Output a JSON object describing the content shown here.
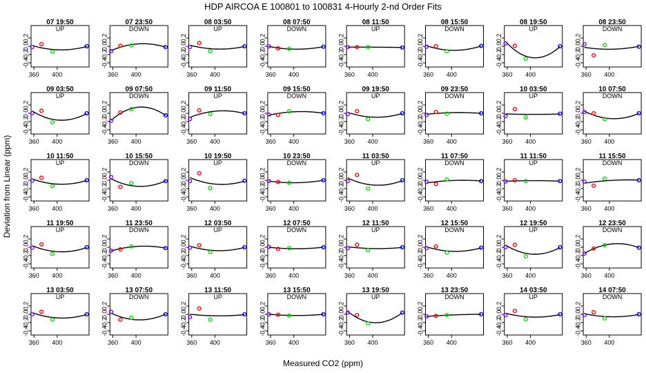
{
  "chart_data": {
    "type": "scatter",
    "title": "HDP    AIRCOA E    100801 to 100831    4-Hourly 2-nd Order Fits",
    "xlabel": "Measured CO2 (ppm)",
    "ylabel": "Deviation from Linear (ppm)",
    "xlim": [
      355,
      455
    ],
    "ylim": [
      -0.5,
      0.5
    ],
    "xticks": [
      360,
      400
    ],
    "xtick_labels": [
      "360",
      "400"
    ],
    "yticks": [
      0.2,
      0.0,
      -0.2,
      -0.4
    ],
    "ytick_labels": [
      "0.2",
      "0.0",
      "-0.2",
      "-0.4"
    ],
    "grid": false,
    "point_x": [
      357,
      373,
      392,
      451
    ],
    "point_colors": [
      "#8000ff",
      "#ff0000",
      "#00dd00",
      "#0000ff"
    ],
    "curve_color": "#000000",
    "panels": [
      {
        "title": "07 19:50",
        "dir": "UP",
        "y": [
          -0.02,
          0.05,
          -0.13,
          0.0
        ]
      },
      {
        "title": "07 23:50",
        "dir": "DOWN",
        "y": [
          -0.12,
          0.01,
          0.02,
          -0.02
        ]
      },
      {
        "title": "08 03:50",
        "dir": "UP",
        "y": [
          -0.02,
          0.08,
          -0.12,
          0.0
        ]
      },
      {
        "title": "08 07:50",
        "dir": "DOWN",
        "y": [
          0.0,
          -0.05,
          -0.06,
          -0.01
        ]
      },
      {
        "title": "08 11:50",
        "dir": "UP",
        "y": [
          -0.02,
          -0.02,
          -0.02,
          -0.03
        ]
      },
      {
        "title": "08 15:50",
        "dir": "DOWN",
        "y": [
          -0.01,
          0.0,
          -0.12,
          0.01
        ]
      },
      {
        "title": "08 19:50",
        "dir": "UP",
        "y": [
          0.07,
          0.01,
          -0.3,
          0.0
        ]
      },
      {
        "title": "08 23:50",
        "dir": "DOWN",
        "y": [
          0.05,
          -0.22,
          0.03,
          -0.01
        ]
      },
      {
        "title": "09 03:50",
        "dir": "UP",
        "y": [
          0.0,
          0.06,
          -0.22,
          0.0
        ]
      },
      {
        "title": "09 07:50",
        "dir": "DOWN",
        "y": [
          -0.18,
          0.02,
          0.1,
          -0.05
        ]
      },
      {
        "title": "09 11:50",
        "dir": "UP",
        "y": [
          -0.14,
          0.07,
          -0.02,
          0.0
        ]
      },
      {
        "title": "09 15:50",
        "dir": "DOWN",
        "y": [
          -0.03,
          -0.04,
          0.05,
          0.0
        ]
      },
      {
        "title": "09 19:50",
        "dir": "UP",
        "y": [
          -0.02,
          0.05,
          -0.14,
          0.0
        ]
      },
      {
        "title": "09 23:50",
        "dir": "DOWN",
        "y": [
          -0.04,
          0.03,
          -0.01,
          0.0
        ]
      },
      {
        "title": "10 03:50",
        "dir": "UP",
        "y": [
          -0.07,
          0.1,
          -0.1,
          -0.01
        ]
      },
      {
        "title": "10 07:50",
        "dir": "DOWN",
        "y": [
          0.03,
          0.0,
          -0.14,
          0.0
        ]
      },
      {
        "title": "10 11:50",
        "dir": "UP",
        "y": [
          -0.01,
          0.06,
          -0.14,
          0.0
        ]
      },
      {
        "title": "10 15:50",
        "dir": "DOWN",
        "y": [
          0.08,
          -0.16,
          -0.07,
          -0.02
        ]
      },
      {
        "title": "10 19:50",
        "dir": "UP",
        "y": [
          -0.02,
          0.17,
          -0.19,
          -0.01
        ]
      },
      {
        "title": "10 23:50",
        "dir": "DOWN",
        "y": [
          -0.02,
          -0.04,
          -0.06,
          0.0
        ]
      },
      {
        "title": "11 03:50",
        "dir": "UP",
        "y": [
          -0.02,
          0.13,
          -0.2,
          0.0
        ]
      },
      {
        "title": "11 07:50",
        "dir": "DOWN",
        "y": [
          -0.04,
          -0.09,
          0.02,
          -0.02
        ]
      },
      {
        "title": "11 11:50",
        "dir": "UP",
        "y": [
          -0.03,
          0.0,
          -0.02,
          -0.02
        ]
      },
      {
        "title": "11 15:50",
        "dir": "DOWN",
        "y": [
          -0.03,
          -0.13,
          0.04,
          0.0
        ]
      },
      {
        "title": "11 19:50",
        "dir": "UP",
        "y": [
          -0.01,
          0.07,
          -0.16,
          0.0
        ]
      },
      {
        "title": "11 23:50",
        "dir": "DOWN",
        "y": [
          -0.08,
          -0.05,
          0.02,
          -0.02
        ]
      },
      {
        "title": "12 03:50",
        "dir": "UP",
        "y": [
          -0.01,
          0.05,
          -0.12,
          0.0
        ]
      },
      {
        "title": "12 07:50",
        "dir": "DOWN",
        "y": [
          0.01,
          -0.04,
          -0.02,
          0.0
        ]
      },
      {
        "title": "12 11:50",
        "dir": "UP",
        "y": [
          -0.02,
          0.06,
          -0.07,
          0.0
        ]
      },
      {
        "title": "12 15:50",
        "dir": "DOWN",
        "y": [
          -0.02,
          0.02,
          -0.13,
          -0.01
        ]
      },
      {
        "title": "12 19:50",
        "dir": "UP",
        "y": [
          0.0,
          0.06,
          -0.22,
          0.0
        ]
      },
      {
        "title": "12 23:50",
        "dir": "DOWN",
        "y": [
          -0.15,
          -0.03,
          0.05,
          -0.01
        ]
      },
      {
        "title": "13 03:50",
        "dir": "UP",
        "y": [
          0.0,
          0.06,
          -0.13,
          0.0
        ]
      },
      {
        "title": "13 07:50",
        "dir": "DOWN",
        "y": [
          0.06,
          -0.13,
          -0.08,
          0.0
        ]
      },
      {
        "title": "13 11:50",
        "dir": "UP",
        "y": [
          -0.07,
          0.14,
          -0.13,
          0.0
        ]
      },
      {
        "title": "13 15:50",
        "dir": "DOWN",
        "y": [
          0.0,
          -0.01,
          -0.03,
          0.0
        ]
      },
      {
        "title": "13 19:50",
        "dir": "UP",
        "y": [
          0.04,
          -0.02,
          -0.22,
          0.04
        ]
      },
      {
        "title": "13 23:50",
        "dir": "DOWN",
        "y": [
          -0.05,
          -0.04,
          -0.02,
          0.0
        ]
      },
      {
        "title": "14 03:50",
        "dir": "UP",
        "y": [
          -0.02,
          0.08,
          -0.12,
          0.0
        ]
      },
      {
        "title": "14 07:50",
        "dir": "DOWN",
        "y": [
          -0.02,
          0.05,
          -0.1,
          0.0
        ]
      }
    ]
  }
}
